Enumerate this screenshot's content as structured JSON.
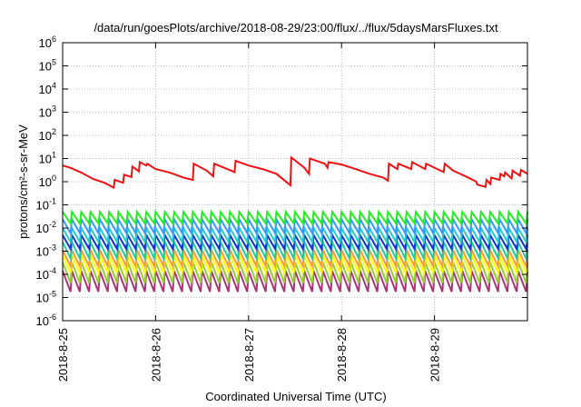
{
  "chart_data": {
    "type": "line",
    "title": "/data/run/goesPlots/archive/2018-08-29/23:00/flux/../flux/5daysMarsFluxes.txt",
    "xlabel": "Coordinated Universal Time (UTC)",
    "ylabel": "protons/cm²-s-sr-MeV",
    "y_scale": "log",
    "ylim": [
      1e-06,
      1000000.0
    ],
    "xlim": [
      0,
      5
    ],
    "x_ticks": [
      {
        "value": 0,
        "label": "2018-8-25"
      },
      {
        "value": 1,
        "label": "2018-8-26"
      },
      {
        "value": 2,
        "label": "2018-8-27"
      },
      {
        "value": 3,
        "label": "2018-8-28"
      },
      {
        "value": 4,
        "label": "2018-8-29"
      }
    ],
    "y_ticks": [
      {
        "value": 1e-06,
        "base": "10",
        "exp": "-6"
      },
      {
        "value": 1e-05,
        "base": "10",
        "exp": "-5"
      },
      {
        "value": 0.0001,
        "base": "10",
        "exp": "-4"
      },
      {
        "value": 0.001,
        "base": "10",
        "exp": "-3"
      },
      {
        "value": 0.01,
        "base": "10",
        "exp": "-2"
      },
      {
        "value": 0.1,
        "base": "10",
        "exp": "-1"
      },
      {
        "value": 1,
        "base": "10",
        "exp": "0"
      },
      {
        "value": 10,
        "base": "10",
        "exp": "1"
      },
      {
        "value": 100,
        "base": "10",
        "exp": "2"
      },
      {
        "value": 1000,
        "base": "10",
        "exp": "3"
      },
      {
        "value": 10000,
        "base": "10",
        "exp": "4"
      },
      {
        "value": 100000,
        "base": "10",
        "exp": "5"
      },
      {
        "value": 1000000,
        "base": "10",
        "exp": "6"
      }
    ],
    "grid": true,
    "series": [
      {
        "color": "#ee1111",
        "x": [
          0,
          0.08,
          0.2,
          0.33,
          0.45,
          0.55,
          0.56,
          0.65,
          0.66,
          0.74,
          0.75,
          0.82,
          0.83,
          0.9,
          0.91,
          1.0,
          1.15,
          1.3,
          1.4,
          1.41,
          1.55,
          1.62,
          1.63,
          1.75,
          1.85,
          1.86,
          2.0,
          2.15,
          2.3,
          2.45,
          2.46,
          2.6,
          2.65,
          2.66,
          2.82,
          2.85,
          2.86,
          3.0,
          3.15,
          3.3,
          3.45,
          3.5,
          3.51,
          3.6,
          3.61,
          3.75,
          3.76,
          3.9,
          3.91,
          4.0,
          4.1,
          4.11,
          4.2,
          4.35,
          4.45,
          4.46,
          4.55,
          4.56,
          4.6,
          4.61,
          4.7,
          4.71,
          4.75,
          4.76,
          4.83,
          4.84,
          4.92,
          4.93,
          5.0
        ],
        "y": [
          5,
          4,
          2.5,
          1.3,
          0.9,
          0.55,
          1.2,
          0.9,
          2,
          1.6,
          4.5,
          2.8,
          7,
          5,
          6,
          3.5,
          2.5,
          1.5,
          1.2,
          6,
          3,
          1.7,
          6,
          3.8,
          2.6,
          8,
          5,
          3.5,
          2.2,
          0.7,
          11,
          4,
          2.2,
          10,
          6,
          4,
          7,
          5.5,
          3.5,
          2.2,
          1.5,
          1.1,
          6,
          3.5,
          6,
          3.5,
          7,
          3.5,
          6,
          4,
          2.6,
          6,
          3,
          1.6,
          1.0,
          0.75,
          0.6,
          1.2,
          0.8,
          1.5,
          1.2,
          2.2,
          1.7,
          2.5,
          1.4,
          3.0,
          1.8,
          3.2,
          2.2
        ]
      },
      {
        "color": "#22ee22",
        "base": 0.028,
        "amp": 0.5
      },
      {
        "color": "#3399ff",
        "base": 0.012,
        "amp": 0.6
      },
      {
        "color": "#22cccc",
        "base": 0.005,
        "amp": 0.6
      },
      {
        "color": "#1133dd",
        "base": 0.0025,
        "amp": 0.6
      },
      {
        "color": "#22cc99",
        "base": 0.0011,
        "amp": 0.7
      },
      {
        "color": "#ff9933",
        "base": 0.0005,
        "amp": 0.7
      },
      {
        "color": "#ffff00",
        "base": 0.00028,
        "amp": 0.75
      },
      {
        "color": "#99cc33",
        "base": 0.00012,
        "amp": 0.9
      },
      {
        "color": "#aa3377",
        "base": 5e-05,
        "amp": 0.9
      }
    ]
  }
}
